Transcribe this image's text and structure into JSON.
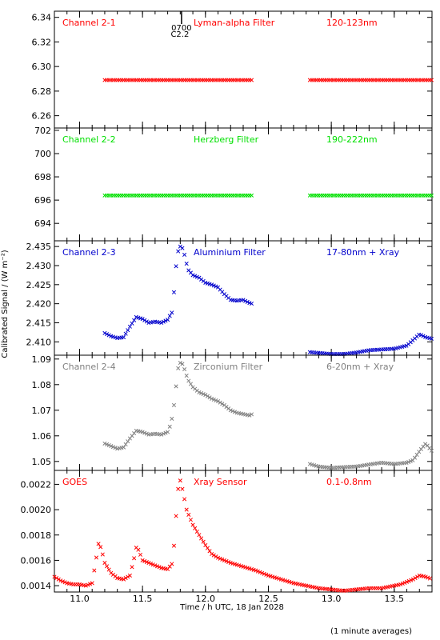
{
  "figure": {
    "xlabel": "Time / h UTC, 18 Jan 2028",
    "ylabel": "Calibrated Signal / (W m⁻²)",
    "footnote": "(1 minute averages)",
    "marker": {
      "time_label": "0700",
      "flare_label": "C2.2",
      "x": 11.81
    },
    "x_ticks": [
      "11.0",
      "11.5",
      "12.0",
      "12.5",
      "13.0",
      "13.5"
    ],
    "colors": {
      "red": "#ff0000",
      "green": "#00e000",
      "blue": "#0000cc",
      "grey": "#808080",
      "axis": "#000000"
    }
  },
  "chart_data": [
    {
      "type": "scatter",
      "panel": "Channel 2-1",
      "labels": [
        "Channel 2-1",
        "Lyman-alpha Filter",
        "120-123nm"
      ],
      "color": "#ff0000",
      "xlim": [
        10.8,
        13.8
      ],
      "ylim": [
        6.25,
        6.345
      ],
      "y_ticks": [
        "6.26",
        "6.28",
        "6.30",
        "6.32",
        "6.34"
      ],
      "segments": [
        {
          "x": [
            11.2,
            11.4,
            11.6,
            11.8,
            12.0,
            12.2,
            12.37
          ],
          "y": [
            6.289,
            6.289,
            6.289,
            6.289,
            6.289,
            6.289,
            6.289
          ]
        },
        {
          "x": [
            12.83,
            13.0,
            13.2,
            13.4,
            13.6,
            13.8
          ],
          "y": [
            6.289,
            6.289,
            6.289,
            6.289,
            6.289,
            6.289
          ]
        }
      ]
    },
    {
      "type": "scatter",
      "panel": "Channel 2-2",
      "labels": [
        "Channel 2-2",
        "Herzberg Filter",
        "190-222nm"
      ],
      "color": "#00e000",
      "xlim": [
        10.8,
        13.8
      ],
      "ylim": [
        692.5,
        702.2
      ],
      "y_ticks": [
        "694",
        "696",
        "698",
        "700",
        "702"
      ],
      "segments": [
        {
          "x": [
            11.2,
            11.4,
            11.6,
            11.8,
            12.0,
            12.2,
            12.37
          ],
          "y": [
            696.4,
            696.4,
            696.4,
            696.4,
            696.4,
            696.4,
            696.4
          ]
        },
        {
          "x": [
            12.83,
            13.0,
            13.2,
            13.4,
            13.6,
            13.8
          ],
          "y": [
            696.4,
            696.4,
            696.4,
            696.4,
            696.4,
            696.4
          ]
        }
      ]
    },
    {
      "type": "scatter",
      "panel": "Channel 2-3",
      "labels": [
        "Channel 2-3",
        "Aluminium Filter",
        "17-80nm + Xray"
      ],
      "color": "#0000cc",
      "xlim": [
        10.8,
        13.8
      ],
      "ylim": [
        2.4065,
        2.4365
      ],
      "y_ticks": [
        "2.410",
        "2.415",
        "2.420",
        "2.425",
        "2.430",
        "2.435"
      ],
      "segments": [
        {
          "x": [
            11.2,
            11.25,
            11.3,
            11.35,
            11.4,
            11.45,
            11.5,
            11.55,
            11.6,
            11.65,
            11.7,
            11.72,
            11.74,
            11.76,
            11.78,
            11.8,
            11.82,
            11.84,
            11.86,
            11.9,
            11.95,
            12.0,
            12.05,
            12.1,
            12.15,
            12.2,
            12.25,
            12.3,
            12.35,
            12.37
          ],
          "y": [
            2.4123,
            2.4115,
            2.411,
            2.4112,
            2.414,
            2.4165,
            2.416,
            2.415,
            2.4153,
            2.415,
            2.4158,
            2.417,
            2.418,
            2.428,
            2.4335,
            2.435,
            2.4345,
            2.432,
            2.429,
            2.4275,
            2.4268,
            2.4255,
            2.425,
            2.4243,
            2.4225,
            2.421,
            2.4208,
            2.421,
            2.4202,
            2.42
          ]
        },
        {
          "x": [
            12.83,
            12.9,
            13.0,
            13.1,
            13.2,
            13.3,
            13.4,
            13.5,
            13.6,
            13.65,
            13.7,
            13.75,
            13.8
          ],
          "y": [
            2.4073,
            2.4071,
            2.4068,
            2.4068,
            2.4072,
            2.4078,
            2.408,
            2.4082,
            2.409,
            2.4105,
            2.412,
            2.4112,
            2.4108
          ]
        }
      ]
    },
    {
      "type": "scatter",
      "panel": "Channel 2-4",
      "labels": [
        "Channel 2-4",
        "Zirconium Filter",
        "6-20nm + Xray"
      ],
      "color": "#808080",
      "xlim": [
        10.8,
        13.8
      ],
      "ylim": [
        1.0465,
        1.0915
      ],
      "y_ticks": [
        "1.05",
        "1.06",
        "1.07",
        "1.08",
        "1.09"
      ],
      "segments": [
        {
          "x": [
            11.2,
            11.25,
            11.3,
            11.35,
            11.4,
            11.45,
            11.5,
            11.55,
            11.6,
            11.65,
            11.7,
            11.72,
            11.74,
            11.76,
            11.78,
            11.8,
            11.82,
            11.84,
            11.86,
            11.9,
            11.95,
            12.0,
            12.05,
            12.1,
            12.15,
            12.2,
            12.25,
            12.3,
            12.35,
            12.37
          ],
          "y": [
            1.057,
            1.056,
            1.055,
            1.0555,
            1.059,
            1.062,
            1.0615,
            1.0605,
            1.0608,
            1.0605,
            1.0615,
            1.064,
            1.068,
            1.076,
            1.086,
            1.0885,
            1.088,
            1.085,
            1.082,
            1.079,
            1.077,
            1.076,
            1.0745,
            1.0735,
            1.072,
            1.07,
            1.069,
            1.0685,
            1.068,
            1.0685
          ]
        },
        {
          "x": [
            12.83,
            12.9,
            13.0,
            13.1,
            13.2,
            13.3,
            13.4,
            13.5,
            13.6,
            13.65,
            13.7,
            13.75,
            13.8
          ],
          "y": [
            1.049,
            1.048,
            1.0475,
            1.0478,
            1.048,
            1.0488,
            1.0495,
            1.049,
            1.0495,
            1.0505,
            1.054,
            1.057,
            1.054
          ]
        }
      ]
    },
    {
      "type": "scatter",
      "panel": "GOES",
      "labels": [
        "GOES",
        "Xray Sensor",
        "0.1-0.8nm"
      ],
      "color": "#ff0000",
      "xlim": [
        10.8,
        13.8
      ],
      "ylim": [
        0.00135,
        0.00231
      ],
      "y_ticks": [
        "0.0014",
        "0.0016",
        "0.0018",
        "0.0020",
        "0.0022"
      ],
      "segments": [
        {
          "x": [
            10.8,
            10.85,
            10.9,
            10.95,
            11.0,
            11.05,
            11.1,
            11.13,
            11.15,
            11.17,
            11.2,
            11.25,
            11.3,
            11.35,
            11.4,
            11.43,
            11.45,
            11.47,
            11.5,
            11.55,
            11.6,
            11.65,
            11.7,
            11.74,
            11.76,
            11.78,
            11.8,
            11.82,
            11.85,
            11.9,
            11.95,
            12.0,
            12.05,
            12.1,
            12.2,
            12.3,
            12.4,
            12.5,
            12.6,
            12.7,
            12.8,
            12.9,
            13.0,
            13.1,
            13.2,
            13.3,
            13.4,
            13.5,
            13.55,
            13.6,
            13.65,
            13.7,
            13.75,
            13.8
          ],
          "y": [
            0.00147,
            0.00144,
            0.00142,
            0.00141,
            0.00141,
            0.0014,
            0.00142,
            0.0016,
            0.00173,
            0.0017,
            0.00158,
            0.0015,
            0.00146,
            0.00145,
            0.00148,
            0.0016,
            0.0017,
            0.00168,
            0.0016,
            0.00158,
            0.00156,
            0.00154,
            0.00153,
            0.00158,
            0.00185,
            0.00215,
            0.00223,
            0.00215,
            0.002,
            0.00188,
            0.0018,
            0.00172,
            0.00165,
            0.00162,
            0.00158,
            0.00155,
            0.00152,
            0.00148,
            0.00145,
            0.00142,
            0.0014,
            0.00138,
            0.00137,
            0.00136,
            0.00137,
            0.00138,
            0.00138,
            0.0014,
            0.00141,
            0.00143,
            0.00145,
            0.00148,
            0.00147,
            0.00145
          ]
        }
      ]
    }
  ]
}
